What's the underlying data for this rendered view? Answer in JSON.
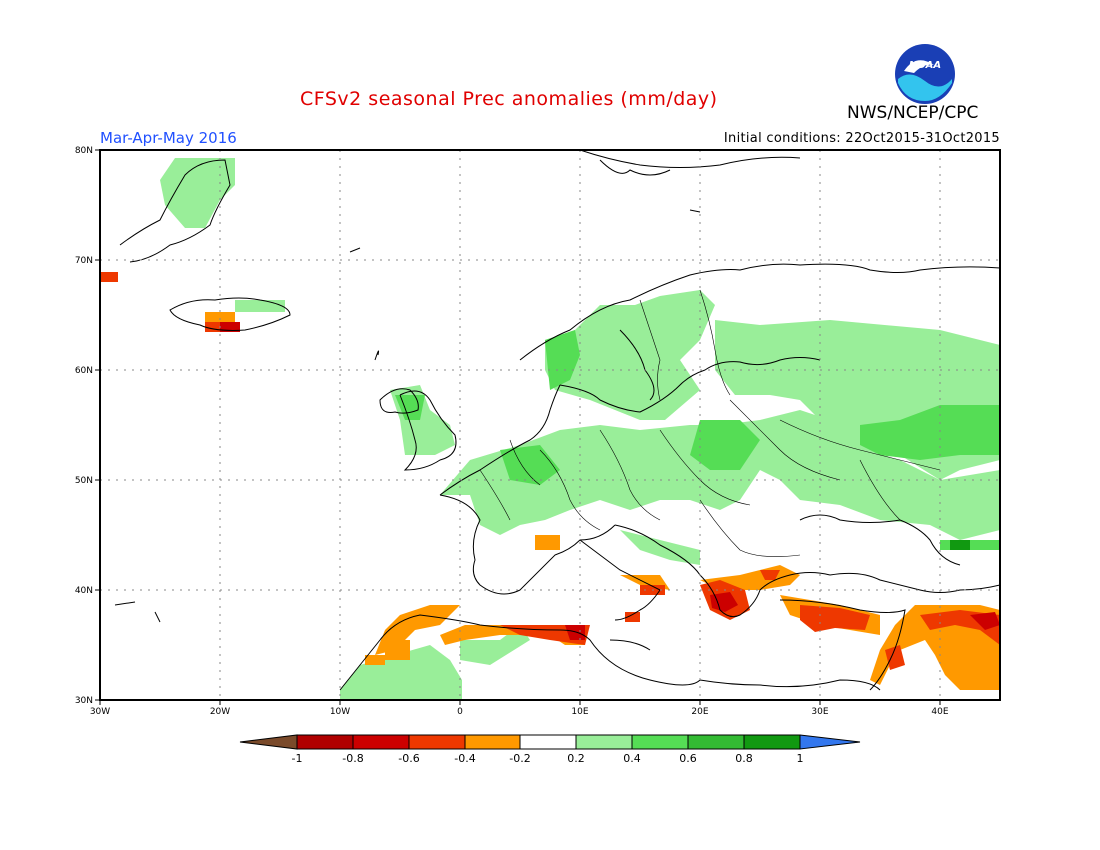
{
  "header": {
    "title": "CFSv2 seasonal Prec anomalies (mm/day)",
    "period": "Mar-Apr-May 2016",
    "initial_conditions": "Initial conditions: 22Oct2015-31Oct2015",
    "agency": "NWS/NCEP/CPC",
    "logo_text": "NOAA"
  },
  "map": {
    "lon_range": [
      -30,
      45
    ],
    "lat_range": [
      30,
      80
    ],
    "lon_ticks": [
      "30W",
      "20W",
      "10W",
      "0",
      "10E",
      "20E",
      "30E",
      "40E"
    ],
    "lat_ticks": [
      "80N",
      "70N",
      "60N",
      "50N",
      "40N",
      "30N"
    ],
    "grid": "dotted"
  },
  "colorbar": {
    "labels": [
      "-1",
      "-0.8",
      "-0.6",
      "-0.4",
      "-0.2",
      "0.2",
      "0.4",
      "0.6",
      "0.8",
      "1"
    ],
    "colors": [
      "#7a4a2a",
      "#b00000",
      "#cc0000",
      "#ee3800",
      "#ff9900",
      "#ffffff",
      "#99ee99",
      "#55dd55",
      "#33bb33",
      "#119911",
      "#3377ee"
    ]
  }
}
